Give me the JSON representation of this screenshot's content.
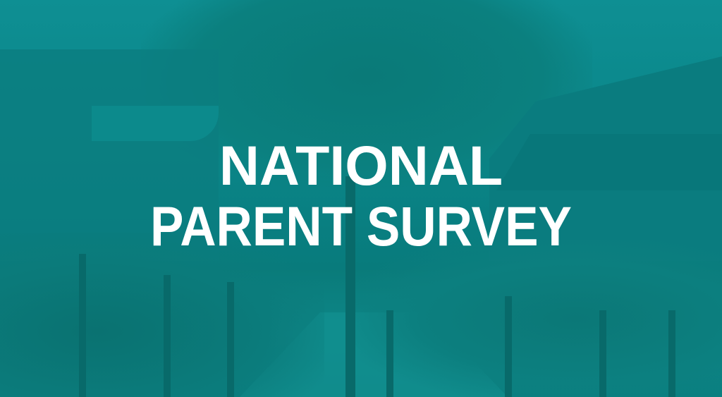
{
  "banner": {
    "title_line1": "NATIONAL",
    "title_line2": "PARENT SURVEY",
    "overlay_color": "#0b8386",
    "text_color": "#ffffff"
  }
}
